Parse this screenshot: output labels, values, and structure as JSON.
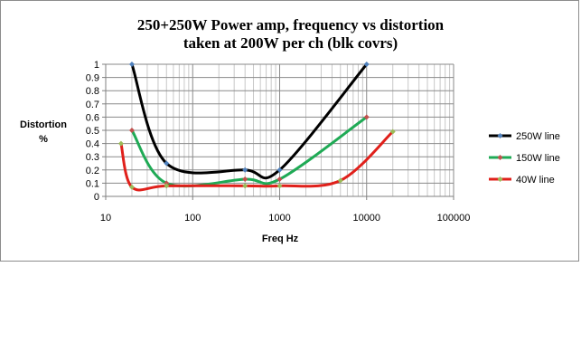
{
  "chart_data": {
    "type": "line",
    "title_line1": "250+250W Power amp, frequency vs distortion",
    "title_line2": "taken at 200W per ch (blk covrs)",
    "ylabel_line1": "Distortion",
    "ylabel_line2": "%",
    "xlabel": "Freq Hz",
    "xscale": "log",
    "xlim": [
      10,
      100000
    ],
    "ylim": [
      0,
      1
    ],
    "x_ticks": [
      "10",
      "100",
      "1000",
      "10000",
      "100000"
    ],
    "y_ticks": [
      "0",
      "0.1",
      "0.2",
      "0.3",
      "0.4",
      "0.5",
      "0.6",
      "0.7",
      "0.8",
      "0.9",
      "1"
    ],
    "grid": "on",
    "legend_position": "right",
    "series": [
      {
        "name": "250W line",
        "color": "#000000",
        "marker_color": "#4f81bd",
        "x": [
          20,
          50,
          400,
          1000,
          10000
        ],
        "y": [
          1.0,
          0.25,
          0.2,
          0.2,
          1.0
        ]
      },
      {
        "name": "150W line",
        "color": "#1faa55",
        "marker_color": "#c0504d",
        "x": [
          20,
          50,
          400,
          1000,
          10000
        ],
        "y": [
          0.5,
          0.1,
          0.13,
          0.13,
          0.6
        ]
      },
      {
        "name": "40W line",
        "color": "#e0201b",
        "marker_color": "#9bbb59",
        "x": [
          15,
          20,
          50,
          400,
          1000,
          5000,
          20000
        ],
        "y": [
          0.4,
          0.07,
          0.08,
          0.08,
          0.08,
          0.12,
          0.49
        ]
      }
    ]
  }
}
